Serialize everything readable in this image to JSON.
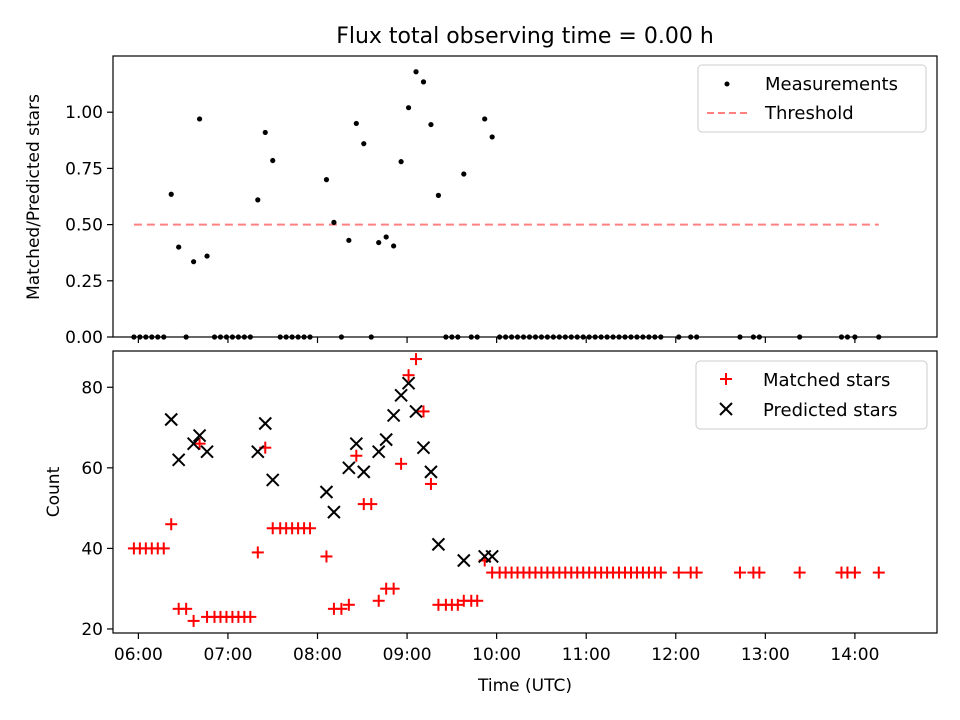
{
  "figure": {
    "title": "Flux total observing time = 0.00 h"
  },
  "colors": {
    "measurement": "#000000",
    "threshold": "#ff8080",
    "matched": "#ff0000",
    "predicted": "#000000"
  },
  "chart_data": [
    {
      "type": "scatter",
      "title": "Flux total observing time = 0.00 h",
      "xlabel": "",
      "ylabel": "Matched/Predicted stars",
      "xlim": [
        "05:43",
        "14:55"
      ],
      "ylim": [
        0,
        1.25
      ],
      "yticks": [
        0.0,
        0.25,
        0.5,
        0.75,
        1.0
      ],
      "ytick_labels": [
        "0.00",
        "0.25",
        "0.50",
        "0.75",
        "1.00"
      ],
      "legend_position": "top-right",
      "series": [
        {
          "name": "Measurements",
          "marker": "dot",
          "points": [
            [
              "05:57",
              0
            ],
            [
              "06:01",
              0
            ],
            [
              "06:05",
              0
            ],
            [
              "06:09",
              0
            ],
            [
              "06:13",
              0
            ],
            [
              "06:17",
              0
            ],
            [
              "06:22",
              0.635
            ],
            [
              "06:27",
              0.4
            ],
            [
              "06:32",
              0
            ],
            [
              "06:37",
              0.335
            ],
            [
              "06:41",
              0.97
            ],
            [
              "06:46",
              0.36
            ],
            [
              "06:51",
              0
            ],
            [
              "06:55",
              0
            ],
            [
              "06:59",
              0
            ],
            [
              "07:03",
              0
            ],
            [
              "07:07",
              0
            ],
            [
              "07:11",
              0
            ],
            [
              "07:15",
              0
            ],
            [
              "07:20",
              0.61
            ],
            [
              "07:25",
              0.91
            ],
            [
              "07:30",
              0.785
            ],
            [
              "07:35",
              0
            ],
            [
              "07:39",
              0
            ],
            [
              "07:43",
              0
            ],
            [
              "07:47",
              0
            ],
            [
              "07:51",
              0
            ],
            [
              "07:55",
              0
            ],
            [
              "08:06",
              0.7
            ],
            [
              "08:11",
              0.51
            ],
            [
              "08:16",
              0
            ],
            [
              "08:21",
              0.43
            ],
            [
              "08:26",
              0.95
            ],
            [
              "08:31",
              0.86
            ],
            [
              "08:36",
              0
            ],
            [
              "08:41",
              0.42
            ],
            [
              "08:46",
              0.445
            ],
            [
              "08:51",
              0.405
            ],
            [
              "08:56",
              0.78
            ],
            [
              "09:01",
              1.02
            ],
            [
              "09:06",
              1.18
            ],
            [
              "09:11",
              1.135
            ],
            [
              "09:16",
              0.945
            ],
            [
              "09:21",
              0.63
            ],
            [
              "09:26",
              0
            ],
            [
              "09:30",
              0
            ],
            [
              "09:34",
              0
            ],
            [
              "09:38",
              0.725
            ],
            [
              "09:43",
              0
            ],
            [
              "09:47",
              0
            ],
            [
              "09:52",
              0.97
            ],
            [
              "09:57",
              0.89
            ],
            [
              "10:02",
              0
            ],
            [
              "10:06",
              0
            ],
            [
              "10:10",
              0
            ],
            [
              "10:14",
              0
            ],
            [
              "10:18",
              0
            ],
            [
              "10:22",
              0
            ],
            [
              "10:26",
              0
            ],
            [
              "10:30",
              0
            ],
            [
              "10:34",
              0
            ],
            [
              "10:38",
              0
            ],
            [
              "10:42",
              0
            ],
            [
              "10:46",
              0
            ],
            [
              "10:50",
              0
            ],
            [
              "10:54",
              0
            ],
            [
              "10:58",
              0
            ],
            [
              "11:02",
              0
            ],
            [
              "11:06",
              0
            ],
            [
              "11:10",
              0
            ],
            [
              "11:14",
              0
            ],
            [
              "11:18",
              0
            ],
            [
              "11:22",
              0
            ],
            [
              "11:26",
              0
            ],
            [
              "11:30",
              0
            ],
            [
              "11:34",
              0
            ],
            [
              "11:38",
              0
            ],
            [
              "11:42",
              0
            ],
            [
              "11:46",
              0
            ],
            [
              "11:50",
              0
            ],
            [
              "12:02",
              0
            ],
            [
              "12:10",
              0
            ],
            [
              "12:14",
              0
            ],
            [
              "12:43",
              0
            ],
            [
              "12:52",
              0
            ],
            [
              "12:56",
              0
            ],
            [
              "13:23",
              0
            ],
            [
              "13:51",
              0
            ],
            [
              "13:55",
              0
            ],
            [
              "14:00",
              0
            ],
            [
              "14:16",
              0
            ]
          ]
        },
        {
          "name": "Threshold",
          "marker": "dashed-line",
          "points": [
            [
              "05:57",
              0.5
            ],
            [
              "14:16",
              0.5
            ]
          ]
        }
      ]
    },
    {
      "type": "scatter",
      "title": "",
      "xlabel": "Time (UTC)",
      "ylabel": "Count",
      "xlim": [
        "05:43",
        "14:55"
      ],
      "ylim": [
        19,
        89
      ],
      "yticks": [
        20,
        40,
        60,
        80
      ],
      "ytick_labels": [
        "20",
        "40",
        "60",
        "80"
      ],
      "xticks": [
        "06:00",
        "07:00",
        "08:00",
        "09:00",
        "10:00",
        "11:00",
        "12:00",
        "13:00",
        "14:00"
      ],
      "legend_position": "top-right",
      "series": [
        {
          "name": "Matched stars",
          "marker": "plus",
          "points": [
            [
              "05:57",
              40
            ],
            [
              "06:01",
              40
            ],
            [
              "06:05",
              40
            ],
            [
              "06:09",
              40
            ],
            [
              "06:13",
              40
            ],
            [
              "06:17",
              40
            ],
            [
              "06:22",
              46
            ],
            [
              "06:27",
              25
            ],
            [
              "06:32",
              25
            ],
            [
              "06:37",
              22
            ],
            [
              "06:41",
              66
            ],
            [
              "06:46",
              23
            ],
            [
              "06:51",
              23
            ],
            [
              "06:55",
              23
            ],
            [
              "06:59",
              23
            ],
            [
              "07:03",
              23
            ],
            [
              "07:07",
              23
            ],
            [
              "07:11",
              23
            ],
            [
              "07:15",
              23
            ],
            [
              "07:20",
              39
            ],
            [
              "07:25",
              65
            ],
            [
              "07:30",
              45
            ],
            [
              "07:35",
              45
            ],
            [
              "07:39",
              45
            ],
            [
              "07:43",
              45
            ],
            [
              "07:47",
              45
            ],
            [
              "07:51",
              45
            ],
            [
              "07:55",
              45
            ],
            [
              "08:06",
              38
            ],
            [
              "08:11",
              25
            ],
            [
              "08:16",
              25
            ],
            [
              "08:21",
              26
            ],
            [
              "08:26",
              63
            ],
            [
              "08:31",
              51
            ],
            [
              "08:36",
              51
            ],
            [
              "08:41",
              27
            ],
            [
              "08:46",
              30
            ],
            [
              "08:51",
              30
            ],
            [
              "08:56",
              61
            ],
            [
              "09:01",
              83
            ],
            [
              "09:06",
              87
            ],
            [
              "09:11",
              74
            ],
            [
              "09:16",
              56
            ],
            [
              "09:21",
              26
            ],
            [
              "09:26",
              26
            ],
            [
              "09:30",
              26
            ],
            [
              "09:34",
              26
            ],
            [
              "09:38",
              27
            ],
            [
              "09:43",
              27
            ],
            [
              "09:47",
              27
            ],
            [
              "09:52",
              37
            ],
            [
              "09:57",
              34
            ],
            [
              "10:02",
              34
            ],
            [
              "10:06",
              34
            ],
            [
              "10:10",
              34
            ],
            [
              "10:14",
              34
            ],
            [
              "10:18",
              34
            ],
            [
              "10:22",
              34
            ],
            [
              "10:26",
              34
            ],
            [
              "10:30",
              34
            ],
            [
              "10:34",
              34
            ],
            [
              "10:38",
              34
            ],
            [
              "10:42",
              34
            ],
            [
              "10:46",
              34
            ],
            [
              "10:50",
              34
            ],
            [
              "10:54",
              34
            ],
            [
              "10:58",
              34
            ],
            [
              "11:02",
              34
            ],
            [
              "11:06",
              34
            ],
            [
              "11:10",
              34
            ],
            [
              "11:14",
              34
            ],
            [
              "11:18",
              34
            ],
            [
              "11:22",
              34
            ],
            [
              "11:26",
              34
            ],
            [
              "11:30",
              34
            ],
            [
              "11:34",
              34
            ],
            [
              "11:38",
              34
            ],
            [
              "11:42",
              34
            ],
            [
              "11:46",
              34
            ],
            [
              "11:50",
              34
            ],
            [
              "12:02",
              34
            ],
            [
              "12:10",
              34
            ],
            [
              "12:14",
              34
            ],
            [
              "12:43",
              34
            ],
            [
              "12:52",
              34
            ],
            [
              "12:56",
              34
            ],
            [
              "13:23",
              34
            ],
            [
              "13:51",
              34
            ],
            [
              "13:55",
              34
            ],
            [
              "14:00",
              34
            ],
            [
              "14:16",
              34
            ]
          ]
        },
        {
          "name": "Predicted stars",
          "marker": "x",
          "points": [
            [
              "06:22",
              72
            ],
            [
              "06:27",
              62
            ],
            [
              "06:37",
              66
            ],
            [
              "06:41",
              68
            ],
            [
              "06:46",
              64
            ],
            [
              "07:20",
              64
            ],
            [
              "07:25",
              71
            ],
            [
              "07:30",
              57
            ],
            [
              "08:06",
              54
            ],
            [
              "08:11",
              49
            ],
            [
              "08:21",
              60
            ],
            [
              "08:26",
              66
            ],
            [
              "08:31",
              59
            ],
            [
              "08:41",
              64
            ],
            [
              "08:46",
              67
            ],
            [
              "08:51",
              73
            ],
            [
              "08:56",
              78
            ],
            [
              "09:01",
              81
            ],
            [
              "09:06",
              74
            ],
            [
              "09:11",
              65
            ],
            [
              "09:16",
              59
            ],
            [
              "09:21",
              41
            ],
            [
              "09:38",
              37
            ],
            [
              "09:52",
              38
            ],
            [
              "09:57",
              38
            ]
          ]
        }
      ]
    }
  ]
}
